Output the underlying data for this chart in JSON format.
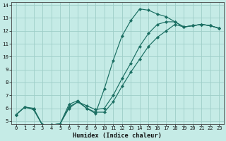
{
  "xlabel": "Humidex (Indice chaleur)",
  "background_color": "#c5ebe6",
  "grid_color": "#9ecec8",
  "line_color": "#1a6e62",
  "xlim": [
    -0.5,
    23.5
  ],
  "ylim": [
    4.8,
    14.2
  ],
  "xticks": [
    0,
    1,
    2,
    3,
    4,
    5,
    6,
    7,
    8,
    9,
    10,
    11,
    12,
    13,
    14,
    15,
    16,
    17,
    18,
    19,
    20,
    21,
    22,
    23
  ],
  "yticks": [
    5,
    6,
    7,
    8,
    9,
    10,
    11,
    12,
    13,
    14
  ],
  "s1_x": [
    0,
    1,
    2,
    3,
    4,
    5,
    6,
    7,
    8,
    9,
    10,
    11,
    12,
    13,
    14,
    15,
    16,
    17,
    18,
    19,
    20,
    21,
    22,
    23
  ],
  "s1_y": [
    5.5,
    6.1,
    6.0,
    4.7,
    4.7,
    4.8,
    6.3,
    6.6,
    6.0,
    5.6,
    7.5,
    9.7,
    11.6,
    12.8,
    13.7,
    13.6,
    13.3,
    13.1,
    12.7,
    12.3,
    12.4,
    12.5,
    12.4,
    12.2
  ],
  "s2_x": [
    0,
    1,
    2,
    3,
    4,
    5,
    6,
    7,
    8,
    9,
    10,
    11,
    12,
    13,
    14,
    15,
    16,
    17,
    18,
    19,
    20,
    21,
    22,
    23
  ],
  "s2_y": [
    5.5,
    6.1,
    5.9,
    4.7,
    4.7,
    4.8,
    6.1,
    6.5,
    6.0,
    5.7,
    5.7,
    6.5,
    7.7,
    8.8,
    9.8,
    10.8,
    11.5,
    12.0,
    12.5,
    12.3,
    12.4,
    12.5,
    12.4,
    12.2
  ],
  "s3_x": [
    0,
    1,
    2,
    3,
    4,
    5,
    6,
    7,
    8,
    9,
    10,
    11,
    12,
    13,
    14,
    15,
    16,
    17,
    18,
    19,
    20,
    21,
    22,
    23
  ],
  "s3_y": [
    5.5,
    6.1,
    5.9,
    4.7,
    4.7,
    4.8,
    6.0,
    6.5,
    6.2,
    5.9,
    6.0,
    7.0,
    8.3,
    9.5,
    10.8,
    11.8,
    12.5,
    12.7,
    12.7,
    12.3,
    12.4,
    12.5,
    12.4,
    12.2
  ],
  "tick_fontsize": 5.0,
  "xlabel_fontsize": 6.2
}
